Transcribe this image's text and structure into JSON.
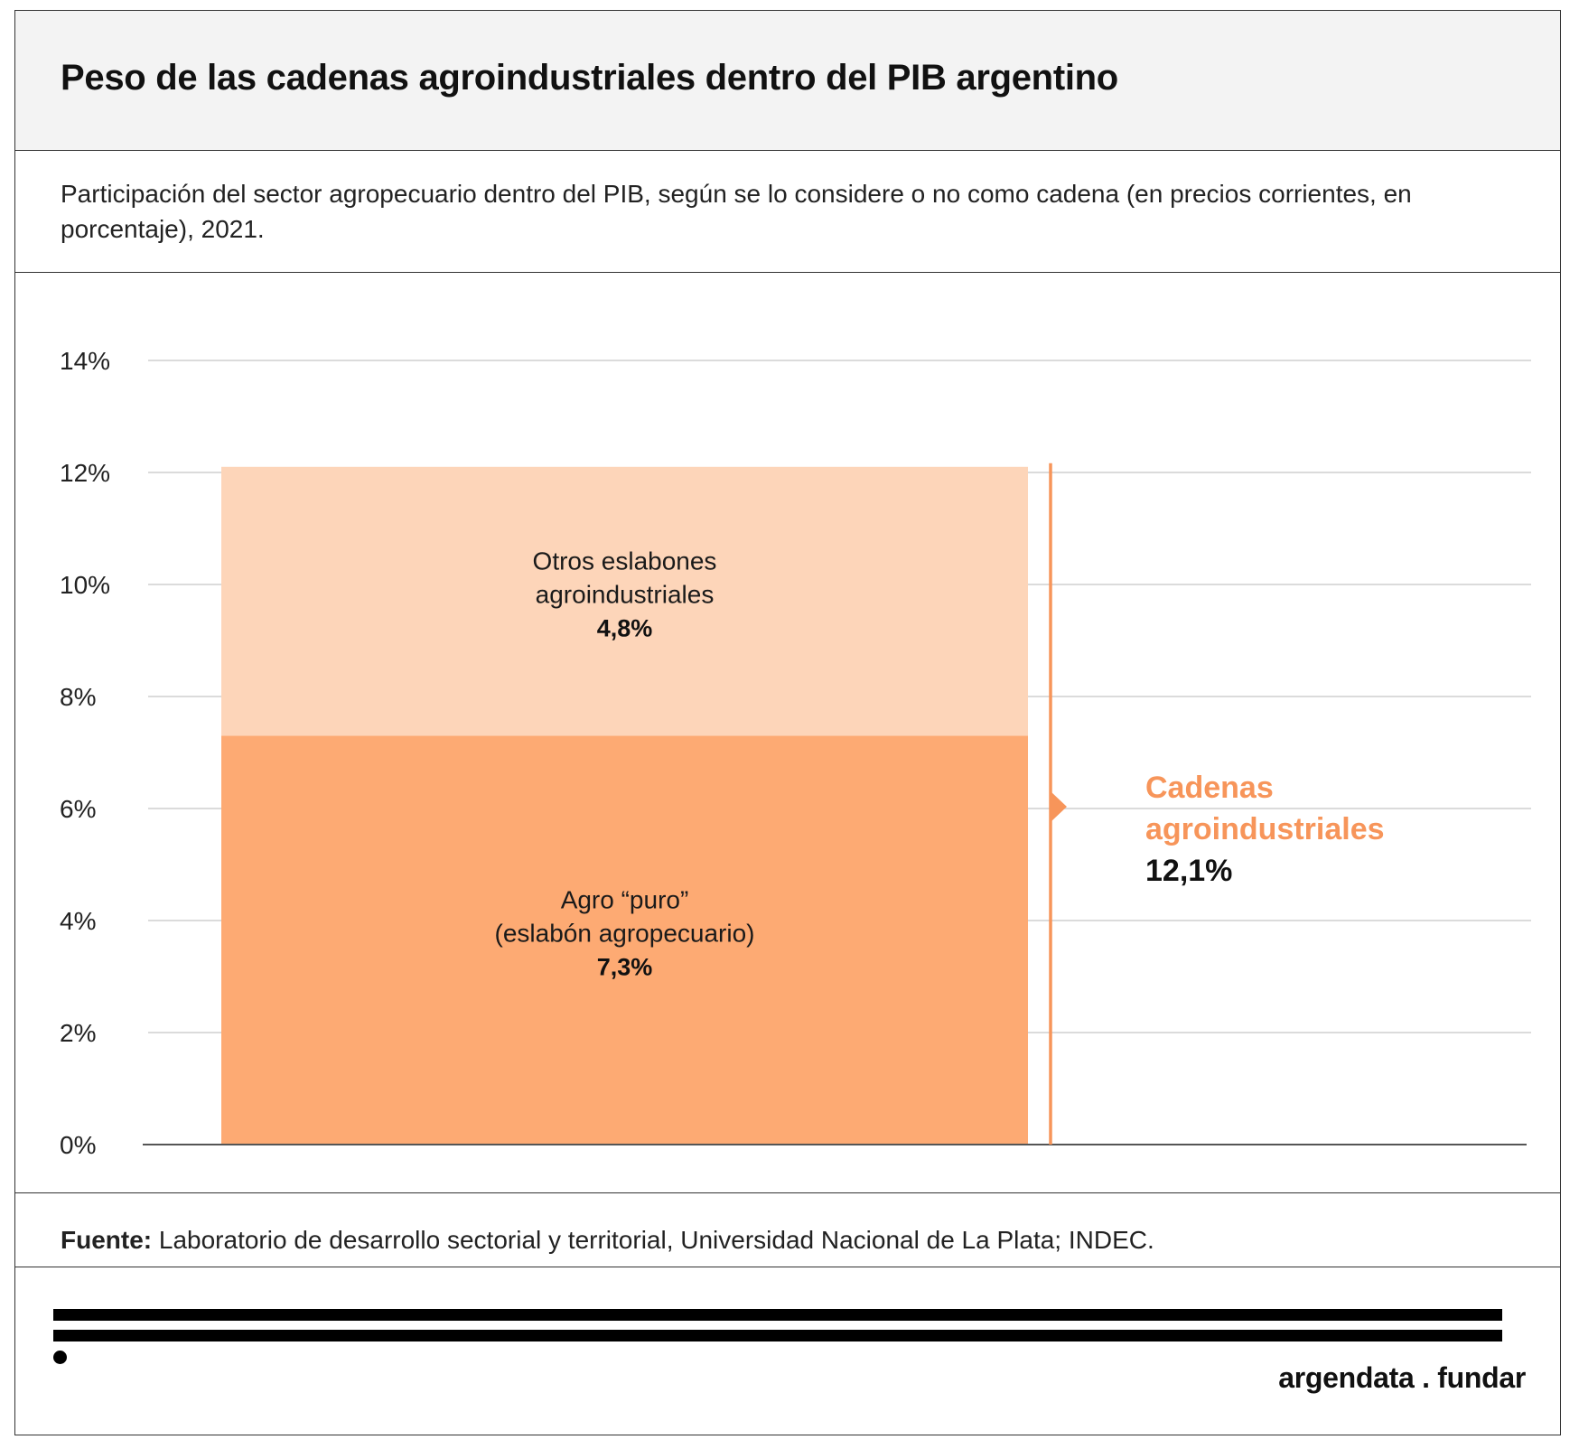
{
  "title": "Peso de las cadenas agroindustriales dentro del PIB argentino",
  "subtitle": "Participación del sector agropecuario dentro del PIB, según se lo considere o no como cadena (en precios corrientes, en porcentaje), 2021.",
  "source": {
    "label": "Fuente:",
    "text": " Laboratorio de desarrollo sectorial y territorial, Universidad Nacional de La Plata; INDEC."
  },
  "brand": "argendata . fundar",
  "colors": {
    "agro_puro": "#fdaa73",
    "otros_eslabones": "#fdd5b9",
    "accent": "#f7955a",
    "grid": "#cfcfcf",
    "axis": "#555555"
  },
  "chart_data": {
    "type": "bar",
    "stacked": true,
    "categories": [
      ""
    ],
    "series": [
      {
        "name": "Agro “puro” (eslabón agropecuario)",
        "label_lines": [
          "Agro “puro”",
          "(eslabón agropecuario)"
        ],
        "value_label": "7,3%",
        "values": [
          7.3
        ]
      },
      {
        "name": "Otros eslabones agroindustriales",
        "label_lines": [
          "Otros eslabones",
          "agroindustriales"
        ],
        "value_label": "4,8%",
        "values": [
          4.8
        ]
      }
    ],
    "total": {
      "label_lines": [
        "Cadenas",
        "agroindustriales"
      ],
      "value_label": "12,1%",
      "value": 12.1
    },
    "yticks": [
      "0%",
      "2%",
      "4%",
      "6%",
      "8%",
      "10%",
      "12%",
      "14%"
    ],
    "ylim": [
      0,
      14
    ],
    "grid": true
  }
}
